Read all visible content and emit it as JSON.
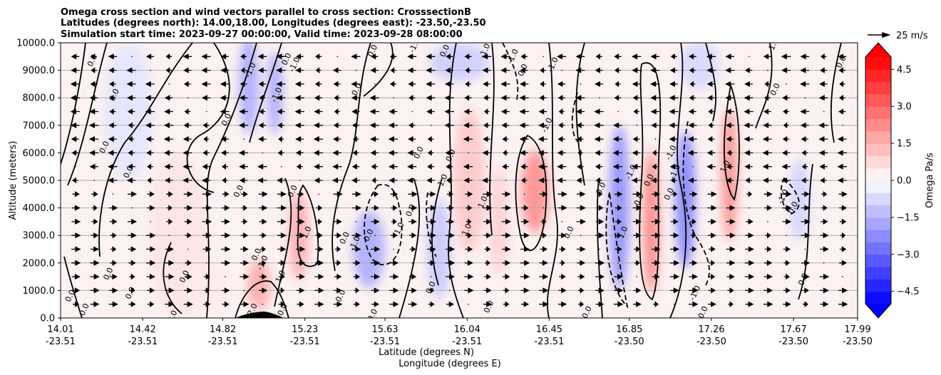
{
  "chart_data": {
    "type": "heatmap",
    "title_lines": [
      "Omega cross section and wind vectors parallel to cross section: CrosssectionB",
      "Latitudes (degrees north): 14.00,18.00, Longitudes (degrees east): -23.50,-23.50",
      "Simulation start time: 2023-09-27 00:00:00, Valid time: 2023-09-28 08:00:00"
    ],
    "ylabel": "Altitude (meters)",
    "xlabel_lines": [
      "Latitude (degrees N)",
      "Longitude (degrees E)"
    ],
    "ylim": [
      0,
      10000
    ],
    "xlim": [
      14.01,
      17.99
    ],
    "yticks": [
      0,
      1000,
      2000,
      3000,
      4000,
      5000,
      6000,
      7000,
      8000,
      9000,
      10000
    ],
    "ytick_labels": [
      "0.0",
      "1000.0",
      "2000.0",
      "3000.0",
      "4000.0",
      "5000.0",
      "6000.0",
      "7000.0",
      "8000.0",
      "9000.0",
      "10000.0"
    ],
    "xticks": [
      {
        "lat": 14.01,
        "lat_label": "14.01",
        "lon_label": "-23.51"
      },
      {
        "lat": 14.42,
        "lat_label": "14.42",
        "lon_label": "-23.51"
      },
      {
        "lat": 14.82,
        "lat_label": "14.82",
        "lon_label": "-23.51"
      },
      {
        "lat": 15.23,
        "lat_label": "15.23",
        "lon_label": "-23.51"
      },
      {
        "lat": 15.63,
        "lat_label": "15.63",
        "lon_label": "-23.51"
      },
      {
        "lat": 16.04,
        "lat_label": "16.04",
        "lon_label": "-23.51"
      },
      {
        "lat": 16.45,
        "lat_label": "16.45",
        "lon_label": "-23.51"
      },
      {
        "lat": 16.85,
        "lat_label": "16.85",
        "lon_label": "-23.50"
      },
      {
        "lat": 17.26,
        "lat_label": "17.26",
        "lon_label": "-23.50"
      },
      {
        "lat": 17.67,
        "lat_label": "17.67",
        "lon_label": "-23.50"
      },
      {
        "lat": 17.99,
        "lat_label": "17.99",
        "lon_label": "-23.50"
      }
    ],
    "grid": "horizontal",
    "colorbar": {
      "label": "Omega Pa/s",
      "min": -5.0,
      "max": 5.0,
      "step": 0.5,
      "extend": "both",
      "ticks": [
        4.5,
        3.0,
        1.5,
        0.0,
        -1.5,
        -3.0,
        -4.5
      ],
      "tick_labels": [
        "4.5",
        "3.0",
        "1.5",
        "0.0",
        "−1.5",
        "−3.0",
        "−4.5"
      ],
      "colormap": "bwr"
    },
    "quiver_key": {
      "label": "25 m/s",
      "speed": 25
    },
    "terrain": {
      "lat_start": 14.87,
      "lat_end": 15.1,
      "peak_height": 200
    },
    "omega_features": [
      {
        "lat": 14.35,
        "z": 7500,
        "value": -0.5,
        "wlat": 0.12,
        "wz": 2500
      },
      {
        "lat": 14.95,
        "z": 8500,
        "value": -1.5,
        "wlat": 0.05,
        "wz": 1800
      },
      {
        "lat": 15.08,
        "z": 8200,
        "value": -1.5,
        "wlat": 0.04,
        "wz": 1500
      },
      {
        "lat": 15.2,
        "z": 3000,
        "value": 1.5,
        "wlat": 0.05,
        "wz": 1600
      },
      {
        "lat": 15.0,
        "z": 1200,
        "value": 1.5,
        "wlat": 0.06,
        "wz": 900
      },
      {
        "lat": 15.55,
        "z": 2500,
        "value": -1.5,
        "wlat": 0.08,
        "wz": 1400
      },
      {
        "lat": 15.9,
        "z": 2500,
        "value": -1.0,
        "wlat": 0.06,
        "wz": 1800
      },
      {
        "lat": 16.05,
        "z": 5000,
        "value": 1.0,
        "wlat": 0.08,
        "wz": 2600
      },
      {
        "lat": 16.38,
        "z": 4600,
        "value": 2.0,
        "wlat": 0.07,
        "wz": 1500
      },
      {
        "lat": 16.2,
        "z": 3500,
        "value": 0.8,
        "wlat": 0.05,
        "wz": 2000
      },
      {
        "lat": 16.8,
        "z": 4000,
        "value": -2.0,
        "wlat": 0.05,
        "wz": 3000
      },
      {
        "lat": 16.96,
        "z": 3500,
        "value": 2.2,
        "wlat": 0.04,
        "wz": 2600
      },
      {
        "lat": 17.13,
        "z": 4300,
        "value": -2.2,
        "wlat": 0.05,
        "wz": 2500
      },
      {
        "lat": 17.35,
        "z": 5200,
        "value": 2.0,
        "wlat": 0.04,
        "wz": 2400
      },
      {
        "lat": 17.7,
        "z": 4300,
        "value": -0.8,
        "wlat": 0.05,
        "wz": 1500
      },
      {
        "lat": 17.2,
        "z": 9200,
        "value": -0.7,
        "wlat": 0.1,
        "wz": 900
      },
      {
        "lat": 16.0,
        "z": 9300,
        "value": -0.9,
        "wlat": 0.15,
        "wz": 700
      },
      {
        "lat": 14.6,
        "z": 3000,
        "value": 0.5,
        "wlat": 0.15,
        "wz": 3000
      },
      {
        "lat": 14.75,
        "z": 1000,
        "value": 0.4,
        "wlat": 0.1,
        "wz": 900
      }
    ],
    "contour_labels": [
      {
        "lat": 14.17,
        "z": 9350,
        "text": "0.0"
      },
      {
        "lat": 14.28,
        "z": 8100,
        "text": "0.0"
      },
      {
        "lat": 14.84,
        "z": 7200,
        "text": "0.0"
      },
      {
        "lat": 14.35,
        "z": 5300,
        "text": "0.0"
      },
      {
        "lat": 14.23,
        "z": 6200,
        "text": "0.0"
      },
      {
        "lat": 14.9,
        "z": 4600,
        "text": "0.0"
      },
      {
        "lat": 14.96,
        "z": 9000,
        "text": "-1.0"
      },
      {
        "lat": 15.14,
        "z": 9400,
        "text": "0.0"
      },
      {
        "lat": 15.18,
        "z": 9200,
        "text": "-1.0"
      },
      {
        "lat": 15.09,
        "z": 8100,
        "text": "-1.0"
      },
      {
        "lat": 15.17,
        "z": 4600,
        "text": "0.0"
      },
      {
        "lat": 15.24,
        "z": 3100,
        "text": "1.0"
      },
      {
        "lat": 15.02,
        "z": 2000,
        "text": "-1.0"
      },
      {
        "lat": 14.99,
        "z": 2300,
        "text": "0.0"
      },
      {
        "lat": 15.11,
        "z": 1500,
        "text": "1.0"
      },
      {
        "lat": 14.97,
        "z": 300,
        "text": "2.0"
      },
      {
        "lat": 15.12,
        "z": 300,
        "text": "0.0"
      },
      {
        "lat": 14.25,
        "z": 1600,
        "text": "0.0"
      },
      {
        "lat": 14.06,
        "z": 800,
        "text": "0.0"
      },
      {
        "lat": 14.13,
        "z": 300,
        "text": "0.0"
      },
      {
        "lat": 14.36,
        "z": 900,
        "text": "0.0"
      },
      {
        "lat": 14.63,
        "z": 1500,
        "text": "0.0"
      },
      {
        "lat": 14.57,
        "z": 50,
        "text": "0.0"
      },
      {
        "lat": 15.57,
        "z": 9700,
        "text": "0.0"
      },
      {
        "lat": 15.49,
        "z": 8300,
        "text": "0.0"
      },
      {
        "lat": 15.43,
        "z": 2900,
        "text": "0.0"
      },
      {
        "lat": 15.48,
        "z": 2700,
        "text": "-1.0"
      },
      {
        "lat": 15.41,
        "z": 800,
        "text": "0.0"
      },
      {
        "lat": 15.57,
        "z": 100,
        "text": "0.0"
      },
      {
        "lat": 15.55,
        "z": 3000,
        "text": "0.0"
      },
      {
        "lat": 15.7,
        "z": 3200,
        "text": "-1.0"
      },
      {
        "lat": 15.76,
        "z": 3900,
        "text": "0.0"
      },
      {
        "lat": 15.8,
        "z": 6000,
        "text": "0.0"
      },
      {
        "lat": 15.86,
        "z": 1100,
        "text": "0.0"
      },
      {
        "lat": 15.78,
        "z": 9900,
        "text": "-1.0"
      },
      {
        "lat": 15.93,
        "z": 9700,
        "text": "0.0"
      },
      {
        "lat": 15.92,
        "z": 5000,
        "text": "1.0"
      },
      {
        "lat": 15.96,
        "z": 5900,
        "text": "0.0"
      },
      {
        "lat": 16.04,
        "z": 3200,
        "text": "1.0"
      },
      {
        "lat": 16.12,
        "z": 4200,
        "text": "1.0"
      },
      {
        "lat": 16.13,
        "z": 9700,
        "text": "-1.0"
      },
      {
        "lat": 16.15,
        "z": 400,
        "text": "0.0"
      },
      {
        "lat": 16.27,
        "z": 9500,
        "text": "-1.0"
      },
      {
        "lat": 16.32,
        "z": 9000,
        "text": "0.0"
      },
      {
        "lat": 16.44,
        "z": 7000,
        "text": "-1.0"
      },
      {
        "lat": 16.47,
        "z": 9200,
        "text": "-1.0"
      },
      {
        "lat": 16.55,
        "z": 3100,
        "text": "0.0"
      },
      {
        "lat": 16.64,
        "z": 200,
        "text": "0.0"
      },
      {
        "lat": 16.71,
        "z": 4700,
        "text": "0.0"
      },
      {
        "lat": 16.82,
        "z": 3100,
        "text": "1.0"
      },
      {
        "lat": 16.86,
        "z": 5300,
        "text": "-1.0"
      },
      {
        "lat": 16.9,
        "z": 4300,
        "text": "0.0"
      },
      {
        "lat": 16.95,
        "z": 5000,
        "text": "0.0"
      },
      {
        "lat": 17.05,
        "z": 4500,
        "text": "0.0"
      },
      {
        "lat": 17.08,
        "z": 5300,
        "text": "-1.0"
      },
      {
        "lat": 17.06,
        "z": 6000,
        "text": "-1.0"
      },
      {
        "lat": 17.18,
        "z": 900,
        "text": "-1.0"
      },
      {
        "lat": 17.22,
        "z": 200,
        "text": "0.0"
      },
      {
        "lat": 17.33,
        "z": 5500,
        "text": "1.0"
      },
      {
        "lat": 17.58,
        "z": 8300,
        "text": "0.0"
      },
      {
        "lat": 17.57,
        "z": 9900,
        "text": "-1.0"
      },
      {
        "lat": 17.62,
        "z": 4400,
        "text": "-1.0"
      },
      {
        "lat": 17.67,
        "z": 4000,
        "text": "0.0"
      },
      {
        "lat": 17.72,
        "z": 1400,
        "text": "0.0"
      },
      {
        "lat": 17.91,
        "z": 9300,
        "text": "0.0"
      }
    ]
  }
}
